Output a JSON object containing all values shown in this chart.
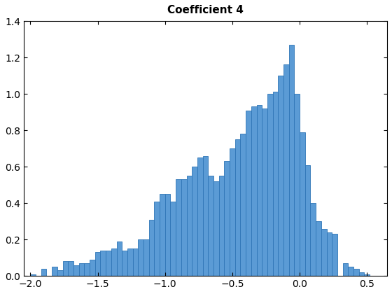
{
  "title": "Coefficient 4",
  "bar_color": "#5B9BD5",
  "edge_color": "#2E75B6",
  "bar_width": 0.04,
  "xlim": [
    -2.05,
    0.65
  ],
  "ylim": [
    0,
    1.4
  ],
  "xticks": [
    -2.0,
    -1.5,
    -1.0,
    -0.5,
    0.0,
    0.5
  ],
  "yticks": [
    0,
    0.2,
    0.4,
    0.6,
    0.8,
    1.0,
    1.2,
    1.4
  ],
  "background_color": "#ffffff",
  "title_fontsize": 11,
  "tick_fontsize": 10,
  "bin_centers": [
    -1.98,
    -1.94,
    -1.9,
    -1.86,
    -1.82,
    -1.78,
    -1.74,
    -1.7,
    -1.66,
    -1.62,
    -1.58,
    -1.54,
    -1.5,
    -1.46,
    -1.42,
    -1.38,
    -1.34,
    -1.3,
    -1.26,
    -1.22,
    -1.18,
    -1.14,
    -1.1,
    -1.06,
    -1.02,
    -0.98,
    -0.94,
    -0.9,
    -0.86,
    -0.82,
    -0.78,
    -0.74,
    -0.7,
    -0.66,
    -0.62,
    -0.58,
    -0.54,
    -0.5,
    -0.46,
    -0.42,
    -0.38,
    -0.34,
    -0.3,
    -0.26,
    -0.22,
    -0.18,
    -0.14,
    -0.1,
    -0.06,
    -0.02,
    0.02,
    0.06,
    0.1,
    0.14,
    0.18,
    0.22,
    0.26,
    0.3,
    0.34,
    0.38,
    0.42,
    0.46,
    0.5,
    0.54,
    0.58
  ],
  "bar_heights": [
    0.01,
    0.0,
    0.04,
    0.0,
    0.05,
    0.03,
    0.08,
    0.08,
    0.06,
    0.07,
    0.07,
    0.09,
    0.13,
    0.14,
    0.14,
    0.15,
    0.19,
    0.14,
    0.15,
    0.15,
    0.2,
    0.2,
    0.31,
    0.41,
    0.45,
    0.45,
    0.41,
    0.53,
    0.53,
    0.55,
    0.6,
    0.65,
    0.66,
    0.55,
    0.52,
    0.55,
    0.63,
    0.7,
    0.75,
    0.78,
    0.91,
    0.93,
    0.94,
    0.92,
    1.0,
    1.01,
    1.1,
    1.16,
    1.27,
    1.0,
    0.79,
    0.61,
    0.4,
    0.3,
    0.26,
    0.24,
    0.23,
    0.0,
    0.07,
    0.05,
    0.04,
    0.02,
    0.01,
    0.0,
    0.0
  ]
}
